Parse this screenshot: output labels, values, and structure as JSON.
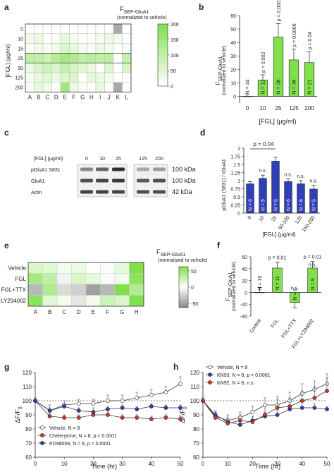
{
  "panels": [
    "a",
    "b",
    "c",
    "d",
    "e",
    "f",
    "g",
    "h"
  ],
  "colors": {
    "green": "#7fe04a",
    "green_light": "#e8f8dd",
    "blue": "#2f3fb8",
    "red": "#d8322a",
    "grey": "#aaaaaa",
    "white": "#ffffff",
    "dark": "#222222"
  },
  "figure_text": {
    "a_colorbar_title": "F",
    "a_colorbar_sub": "SEP-GluA1",
    "a_colorbar_note": "(normalized to vehicle)",
    "a_ylabel": "[FGL] (µg/ml)",
    "a_colorbar_ticks": [
      "200",
      "150",
      "100",
      "50",
      "0"
    ],
    "b_ylabel": "F",
    "b_ylabel_sub": "SEP-GluA1",
    "b_ylabel_note": "(normalized to vehicle)",
    "b_xlabel": "[FGL] (µg/ml)",
    "c_header": "[FGL] (µg/ml)",
    "c_doses": [
      "0",
      "10",
      "25",
      "125",
      "200"
    ],
    "c_rows": [
      "pGluA1 S831",
      "GluA1",
      "Actin"
    ],
    "c_sizes": [
      "100 kDa",
      "100 kDa",
      "42 kDa"
    ],
    "d_ylabel": "pGluA1 (S831) / tGluA1",
    "d_xlabel": "[FGL] (µg/ml)",
    "d_pvalue": "p = 0.04",
    "e_colorbar_title": "F",
    "e_colorbar_sub": "SEP-GluA1",
    "e_colorbar_note": "(normalized to vehicle)",
    "e_colorbar_ticks": [
      "50",
      "0",
      "-50"
    ],
    "f_ylabel": "F",
    "f_ylabel_sub": "SEP-GluA1",
    "f_ylabel_note": "(normalized to vehicle)",
    "g_ylabel": "ΔF/F",
    "g_ylabel_sub": "0",
    "g_xlabel": "Time (hr)",
    "h_ylabel": "ΔF/F",
    "h_ylabel_sub": "0",
    "h_xlabel": "Time (hr)"
  },
  "chart_data": [
    {
      "panel": "a",
      "type": "heatmap",
      "columns": [
        "A",
        "B",
        "C",
        "D",
        "E",
        "F",
        "G",
        "H",
        "I",
        "J",
        "K",
        "L"
      ],
      "rows": [
        "0",
        "10",
        "15",
        "25",
        "50",
        "125",
        "200"
      ],
      "ylabel": "[FGL] (µg/ml)",
      "colorbar": {
        "min": 0,
        "max": 200,
        "ticks": [
          0,
          50,
          100,
          150,
          200
        ]
      },
      "values": [
        [
          100,
          100,
          100,
          100,
          100,
          100,
          100,
          100,
          100,
          100,
          -1,
          100
        ],
        [
          110,
          115,
          100,
          105,
          118,
          108,
          100,
          102,
          108,
          115,
          112,
          100
        ],
        [
          100,
          112,
          105,
          112,
          130,
          120,
          108,
          104,
          115,
          110,
          100,
          105
        ],
        [
          150,
          148,
          142,
          158,
          170,
          162,
          150,
          155,
          148,
          152,
          100,
          145
        ],
        [
          115,
          130,
          138,
          128,
          145,
          132,
          122,
          118,
          100,
          128,
          100,
          130
        ],
        [
          108,
          118,
          122,
          115,
          128,
          130,
          100,
          120,
          115,
          110,
          100,
          100
        ],
        [
          105,
          120,
          112,
          100,
          175,
          115,
          105,
          100,
          120,
          100,
          -1,
          100
        ]
      ]
    },
    {
      "panel": "b",
      "type": "bar",
      "categories": [
        "0",
        "10",
        "25",
        "125",
        "200"
      ],
      "values": [
        0,
        12,
        44,
        27,
        25
      ],
      "errors": [
        1,
        4,
        10,
        8,
        8
      ],
      "n_labels": [
        "N = 44",
        "N = 12",
        "N = 38",
        "N = 36",
        "N = 21"
      ],
      "pvalues": [
        "",
        "p = 0.002",
        "p < 0.0001",
        "p = 0.0006",
        "p = 0.04"
      ],
      "xlabel": "[FGL] (µg/ml)",
      "ylabel": "F SEP-GluA1 (normalized to vehicle)",
      "ylim": [
        -5,
        60
      ],
      "yticks": [
        0,
        10,
        20,
        30,
        40,
        50,
        60
      ]
    },
    {
      "panel": "d",
      "type": "bar",
      "categories": [
        "0",
        "10",
        "25",
        "50-100",
        "125",
        "150-200"
      ],
      "values": [
        0.9,
        1.07,
        1.6,
        0.97,
        0.9,
        0.74
      ],
      "errors": [
        0.07,
        0.1,
        0.12,
        0.08,
        0.1,
        0.12
      ],
      "n_labels": [
        "N = 8",
        "N = 5",
        "N = 5",
        "N = 6",
        "N = 6",
        "N = 5"
      ],
      "annotations": [
        "",
        "n.s.",
        "",
        "n.s.",
        "n.s.",
        "n.s."
      ],
      "xlabel": "[FGL] (µg/ml)",
      "ylabel": "pGluA1 (S831) / tGluA1",
      "ylim": [
        0,
        2.0
      ],
      "yticks": [
        0,
        0.25,
        0.5,
        0.75,
        1.0,
        1.25,
        1.5,
        1.75,
        2.0
      ]
    },
    {
      "panel": "e",
      "type": "heatmap",
      "columns": [
        "A",
        "B",
        "C",
        "D",
        "E",
        "F",
        "G",
        "H"
      ],
      "rows": [
        "Vehicle",
        "FGL",
        "FGL+TTX",
        "FGL+LY294002"
      ],
      "colorbar": {
        "min": -50,
        "max": 50,
        "ticks": [
          -50,
          0,
          50
        ]
      },
      "values": [
        [
          15,
          12,
          5,
          8,
          0,
          2,
          10,
          50
        ],
        [
          35,
          25,
          -5,
          15,
          10,
          -2,
          5,
          45
        ],
        [
          -30,
          30,
          -15,
          -20,
          -40,
          -30,
          50,
          30
        ],
        [
          45,
          12,
          5,
          -10,
          5,
          20,
          15,
          55
        ]
      ]
    },
    {
      "panel": "f",
      "type": "bar",
      "categories": [
        "Control",
        "FGL",
        "FGL+TTX",
        "FGL+LY294002"
      ],
      "values": [
        0,
        41,
        -17,
        41
      ],
      "errors": [
        8,
        10,
        9,
        11
      ],
      "n_labels": [
        "N = 10",
        "N = 11",
        "N = 6",
        "N = 9"
      ],
      "pvalues": [
        "",
        "p = 0.01",
        "n.s.",
        "p = 0.01"
      ],
      "extra": [
        "",
        "",
        "",
        "n.s."
      ],
      "ylabel": "F SEP-GluA1 (normalized to vehicle)",
      "ylim": [
        -40,
        60
      ],
      "yticks": [
        -40,
        -20,
        0,
        20,
        40,
        60
      ]
    },
    {
      "panel": "g",
      "type": "line",
      "x": [
        0,
        5,
        10,
        15,
        20,
        25,
        30,
        35,
        40,
        45,
        50
      ],
      "series": [
        {
          "name": "Vehicle, N = 8",
          "color": "#ffffff",
          "y": [
            100,
            93,
            97,
            98,
            98,
            100,
            100,
            102,
            104,
            106,
            112
          ],
          "err": [
            2,
            4,
            3,
            3,
            3,
            4,
            4,
            4,
            4,
            4,
            5
          ]
        },
        {
          "name": "Chelerytrine, N = 8, p < 0.0001",
          "color": "#d8322a",
          "y": [
            100,
            89,
            88,
            88,
            90,
            90,
            88,
            88,
            87,
            88,
            87
          ],
          "err": [
            1,
            2,
            2,
            2,
            2,
            2,
            2,
            2,
            2,
            2,
            2
          ]
        },
        {
          "name": "PD98059, N = 8, p < 0.0001",
          "color": "#2f3fb8",
          "y": [
            100,
            93,
            96,
            93,
            92,
            94,
            95,
            94,
            96,
            95,
            95
          ],
          "err": [
            1,
            2,
            2,
            2,
            3,
            2,
            2,
            2,
            2,
            2,
            2
          ]
        }
      ],
      "xlabel": "Time (hr)",
      "ylabel": "ΔF/F0",
      "xlim": [
        0,
        50
      ],
      "ylim": [
        60,
        120
      ],
      "yticks": [
        60,
        70,
        80,
        90,
        100,
        110,
        120
      ],
      "xticks": [
        0,
        10,
        20,
        30,
        40,
        50
      ]
    },
    {
      "panel": "h",
      "type": "line",
      "x": [
        0,
        5,
        10,
        15,
        20,
        25,
        30,
        35,
        40,
        45,
        50
      ],
      "series": [
        {
          "name": "Vehicle, N = 8",
          "color": "#ffffff",
          "y": [
            100,
            89,
            86,
            88,
            92,
            97,
            97,
            100,
            105,
            108,
            112
          ],
          "err": [
            2,
            4,
            4,
            4,
            4,
            5,
            6,
            6,
            7,
            6,
            7
          ]
        },
        {
          "name": "KN93, N = 8, p < 0.0001",
          "color": "#2f3fb8",
          "y": [
            100,
            90,
            85,
            83,
            86,
            89,
            90,
            94,
            95,
            95,
            94
          ],
          "err": [
            1,
            2,
            2,
            3,
            3,
            3,
            3,
            3,
            3,
            3,
            2
          ]
        },
        {
          "name": "KN92, N = 6, n.s.",
          "color": "#d8322a",
          "y": [
            100,
            88,
            84,
            86,
            85,
            90,
            95,
            96,
            100,
            102,
            107
          ],
          "err": [
            2,
            4,
            4,
            4,
            4,
            5,
            6,
            6,
            7,
            8,
            9
          ]
        }
      ],
      "xlabel": "Time (hr)",
      "ylabel": "ΔF/F0",
      "xlim": [
        0,
        50
      ],
      "ylim": [
        60,
        120
      ],
      "yticks": [
        60,
        70,
        80,
        90,
        100,
        110,
        120
      ],
      "xticks": [
        0,
        10,
        20,
        30,
        40,
        50
      ]
    }
  ]
}
